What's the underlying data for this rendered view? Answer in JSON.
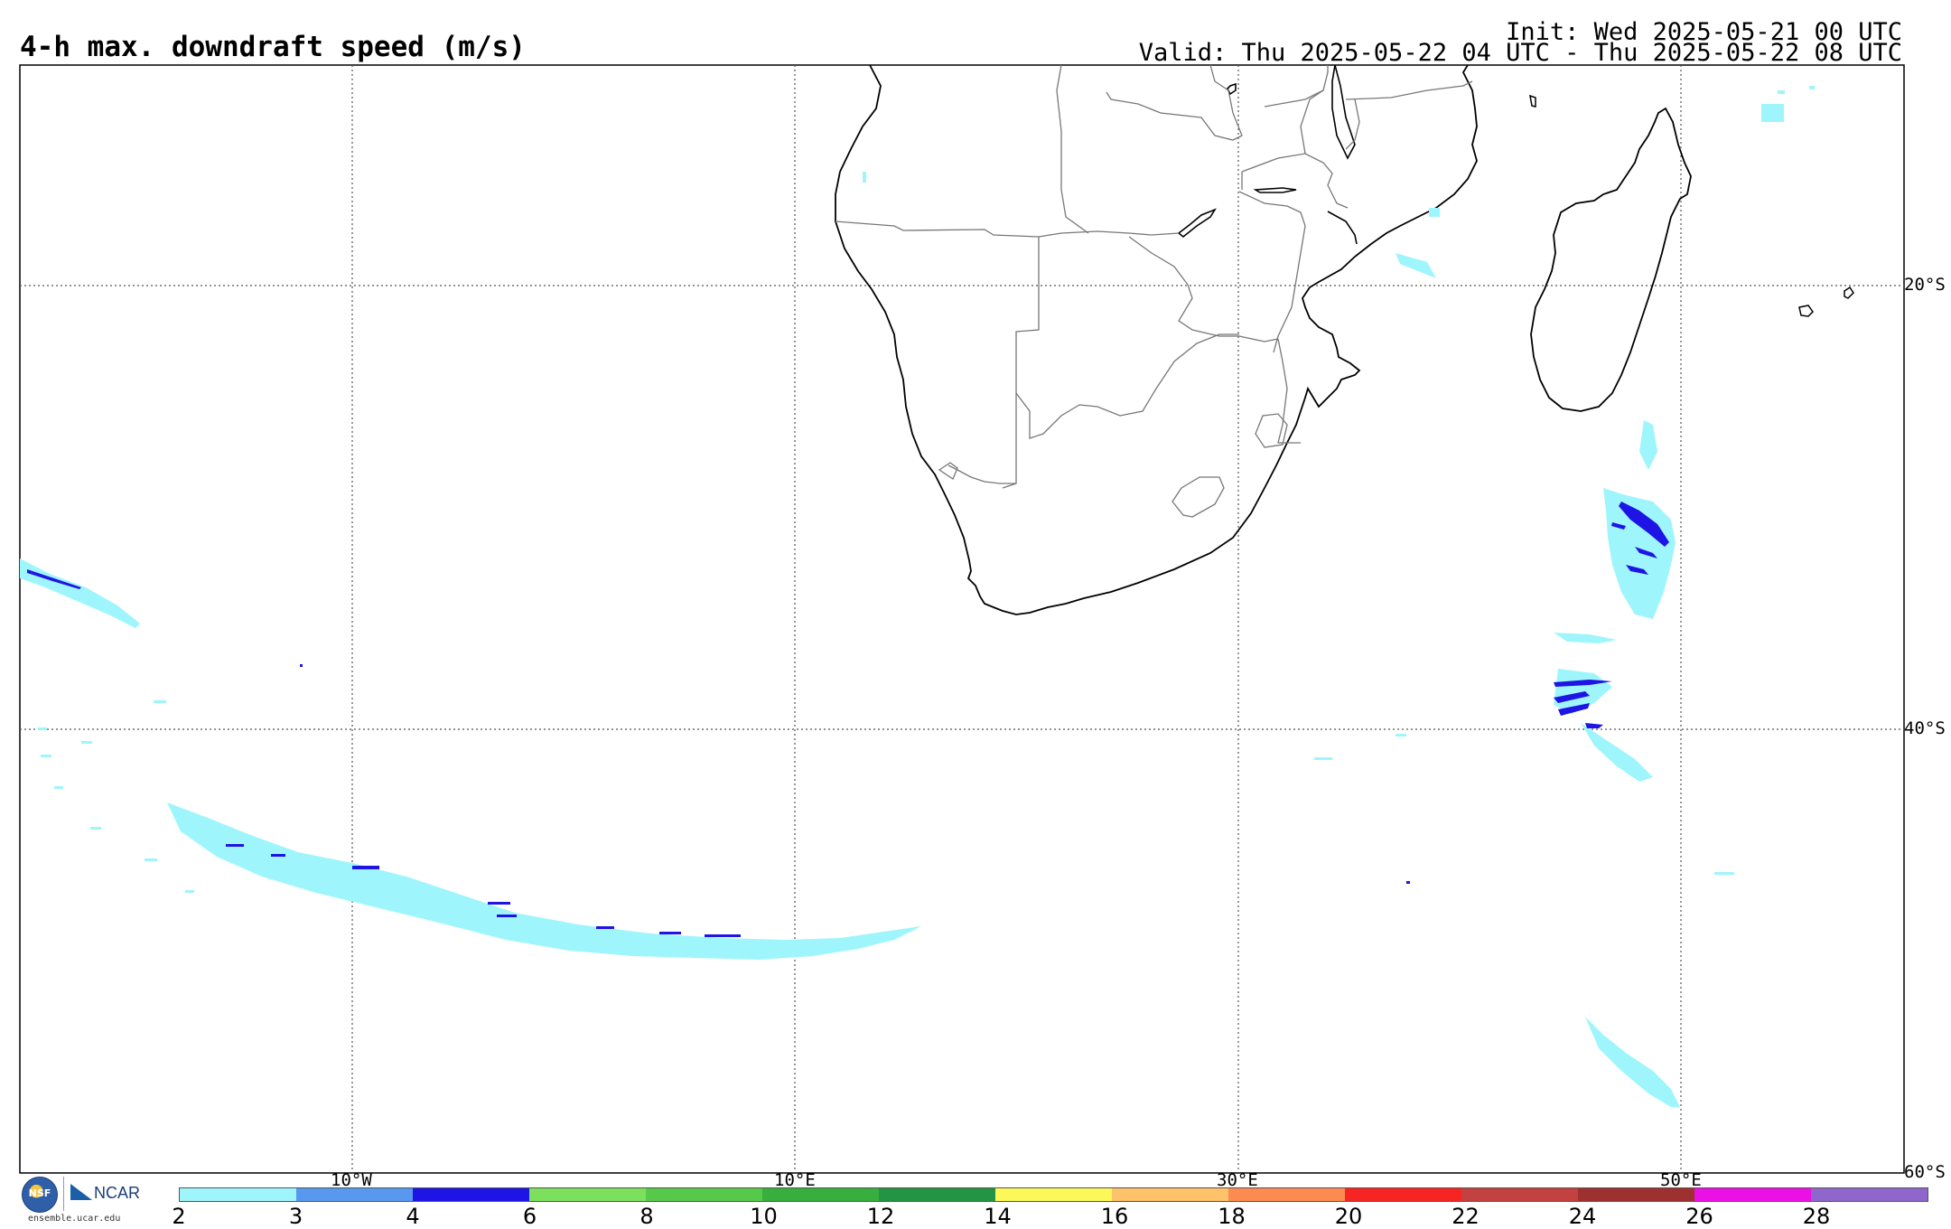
{
  "header": {
    "title": "4-h max. downdraft speed (m/s)",
    "init": "Init: Wed 2025-05-21 00 UTC",
    "valid": "Valid: Thu 2025-05-22 04 UTC - Thu 2025-05-22 08 UTC"
  },
  "map": {
    "region": "Southern Africa",
    "lon_labels": [
      "10°W",
      "10°E",
      "30°E",
      "50°E"
    ],
    "lat_labels": [
      "20°S",
      "40°S",
      "60°S"
    ],
    "gridlines": "dotted"
  },
  "colorbar": {
    "ticks": [
      "2",
      "3",
      "4",
      "6",
      "8",
      "10",
      "12",
      "14",
      "16",
      "18",
      "20",
      "22",
      "24",
      "26",
      "28"
    ],
    "colors": [
      "#9ef6fc",
      "#5899ef",
      "#1f14e6",
      "#7de05d",
      "#56c94a",
      "#38ae3e",
      "#239344",
      "#fdf85a",
      "#fdc26a",
      "#fc8b51",
      "#f72424",
      "#c44141",
      "#9e3030",
      "#ec10e6",
      "#8f66cc"
    ]
  },
  "footer": {
    "logo_nsf": "NSF",
    "logo_ncar": "NCAR",
    "url": "ensemble.ucar.edu"
  }
}
